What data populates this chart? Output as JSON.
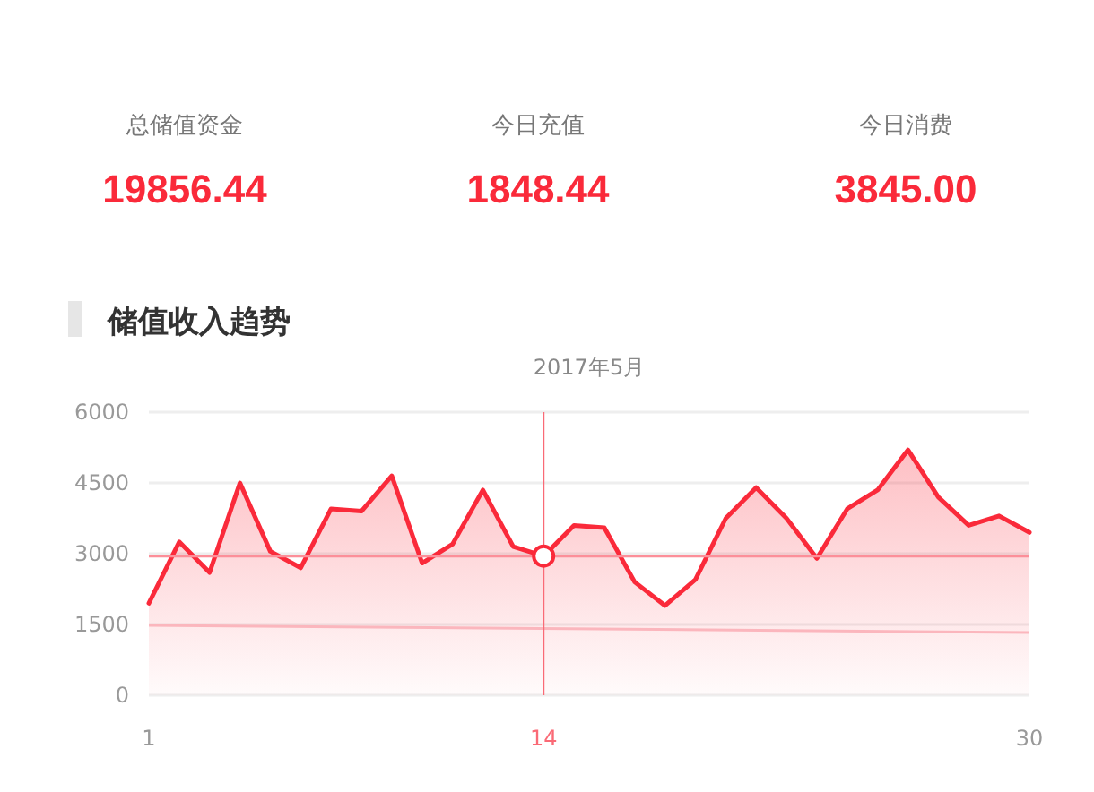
{
  "chart_data": [
    {
      "type": "other",
      "categories": [
        "总储值资金",
        "今日充值",
        "今日消费"
      ],
      "value_labels": [
        "19856.44",
        "1848.44",
        "3845.00"
      ],
      "color": "#fa2a3a"
    },
    {
      "type": "area",
      "title": "储值收入趋势",
      "subtitle": "2017年5月",
      "xlim": [
        1,
        30
      ],
      "xticks": [
        1,
        14,
        30
      ],
      "ylim": [
        0,
        6000
      ],
      "yticks": [
        0,
        1500,
        3000,
        4500,
        6000
      ],
      "grid": "y",
      "series": [
        {
          "type": "area",
          "color": "#fa2a3a",
          "x": [
            1,
            2,
            3,
            4,
            5,
            6,
            7,
            8,
            9,
            10,
            11,
            12,
            13,
            14,
            15,
            16,
            17,
            18,
            19,
            20,
            21,
            22,
            23,
            24,
            25,
            26,
            27,
            28,
            29,
            30
          ],
          "values": [
            1950,
            3250,
            2600,
            4500,
            3050,
            2700,
            3950,
            3900,
            4650,
            2800,
            3200,
            4350,
            3150,
            2950,
            3600,
            3550,
            2400,
            1900,
            2450,
            3750,
            4400,
            3750,
            2900,
            3950,
            4350,
            5200,
            4200,
            3600,
            3800,
            3450
          ]
        },
        {
          "type": "line",
          "color": "#fbb6bd",
          "x": [
            1,
            30
          ],
          "values": [
            1480,
            1330
          ]
        },
        {
          "type": "scatter",
          "color": "#fa2a3a",
          "marker": "circle",
          "x": [
            14
          ],
          "values": [
            2950
          ]
        }
      ],
      "ref_lines": [
        {
          "axis": "y",
          "value": 2950,
          "color": "#fc8f99"
        },
        {
          "axis": "x",
          "value": 14,
          "color": "#fa6a76"
        }
      ]
    }
  ]
}
